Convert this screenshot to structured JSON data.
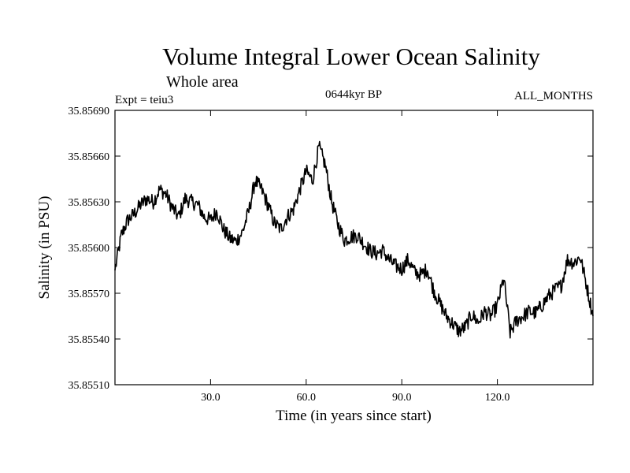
{
  "chart_data": {
    "type": "line",
    "title": "Volume Integral Lower Ocean Salinity",
    "subtitle": "Whole area",
    "expt_label": "Expt = teiu3",
    "period_label": "0644kyr BP",
    "months_label": "ALL_MONTHS",
    "xlabel": "Time (in years since start)",
    "ylabel": "Salinity (in PSU)",
    "xlim": [
      0,
      150
    ],
    "ylim": [
      35.8551,
      35.8569
    ],
    "x_ticks": [
      {
        "value": 30,
        "label": "30.0"
      },
      {
        "value": 60,
        "label": "60.0"
      },
      {
        "value": 90,
        "label": "90.0"
      },
      {
        "value": 120,
        "label": "120.0"
      }
    ],
    "y_ticks": [
      {
        "value": 35.8551,
        "label": "35.85510"
      },
      {
        "value": 35.8554,
        "label": "35.85540"
      },
      {
        "value": 35.8557,
        "label": "35.85570"
      },
      {
        "value": 35.856,
        "label": "35.85600"
      },
      {
        "value": 35.8563,
        "label": "35.85630"
      },
      {
        "value": 35.8566,
        "label": "35.85660"
      },
      {
        "value": 35.8569,
        "label": "35.85690"
      }
    ],
    "series": [
      {
        "name": "salinity",
        "x": [
          0,
          2,
          4,
          6,
          8,
          10,
          12,
          14,
          16,
          18,
          20,
          22,
          24,
          26,
          28,
          30,
          32,
          34,
          36,
          38,
          40,
          42,
          44,
          46,
          48,
          50,
          52,
          54,
          56,
          58,
          60,
          62,
          64,
          66,
          68,
          70,
          72,
          74,
          76,
          78,
          80,
          82,
          84,
          86,
          88,
          90,
          92,
          94,
          96,
          98,
          100,
          102,
          104,
          106,
          108,
          110,
          112,
          114,
          116,
          118,
          120,
          122,
          124,
          126,
          128,
          130,
          132,
          134,
          136,
          138,
          140,
          142,
          144,
          146,
          148,
          150
        ],
        "values": [
          35.85585,
          35.85608,
          35.85618,
          35.85622,
          35.85628,
          35.85632,
          35.8563,
          35.85638,
          35.85635,
          35.85626,
          35.8562,
          35.85632,
          35.8563,
          35.85628,
          35.8562,
          35.85618,
          35.85624,
          35.85612,
          35.85606,
          35.85604,
          35.8561,
          35.85624,
          35.85644,
          35.85638,
          35.85628,
          35.85616,
          35.85612,
          35.8562,
          35.85625,
          35.85638,
          35.8565,
          35.85644,
          35.85666,
          35.85654,
          35.8563,
          35.85615,
          35.85605,
          35.85607,
          35.85608,
          35.85603,
          35.85598,
          35.85596,
          35.85598,
          35.85592,
          35.85588,
          35.85586,
          35.85592,
          35.85584,
          35.85582,
          35.85586,
          35.85572,
          35.85563,
          35.85555,
          35.8555,
          35.85545,
          35.85548,
          35.85556,
          35.85551,
          35.85558,
          35.85555,
          35.85562,
          35.8558,
          35.85544,
          35.85552,
          35.85555,
          35.85558,
          35.85557,
          35.85562,
          35.85568,
          35.85572,
          35.85575,
          35.85592,
          35.8559,
          35.85594,
          35.85575,
          35.85555
        ]
      }
    ]
  }
}
